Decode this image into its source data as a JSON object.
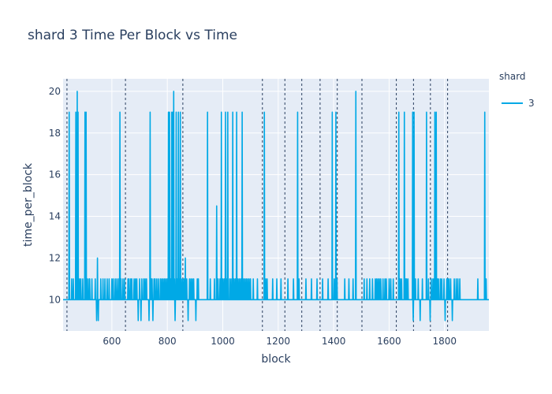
{
  "chart_data": {
    "type": "line",
    "title": "shard 3 Time Per Block vs Time",
    "xlabel": "block",
    "ylabel": "time_per_block",
    "xlim": [
      424,
      1960
    ],
    "ylim": [
      8.5,
      20.6
    ],
    "x_ticks": [
      600,
      800,
      1000,
      1200,
      1400,
      1600,
      1800
    ],
    "x_tick_labels": [
      "600",
      "800",
      "1000",
      "1200",
      "1400",
      "1600",
      "1800"
    ],
    "y_ticks": [
      10,
      12,
      14,
      16,
      18,
      20
    ],
    "y_tick_labels": [
      "10",
      "12",
      "14",
      "16",
      "18",
      "20"
    ],
    "grid": true,
    "legend": {
      "title": "shard",
      "placement": "top-right"
    },
    "vlines": [
      438,
      649,
      856,
      1143,
      1224,
      1285,
      1351,
      1413,
      1502,
      1626,
      1688,
      1749,
      1811
    ],
    "series": [
      {
        "name": "3",
        "color": "#00a9e6",
        "spikes": [
          [
            446,
            19
          ],
          [
            455,
            11
          ],
          [
            461,
            11
          ],
          [
            470,
            19
          ],
          [
            475,
            20
          ],
          [
            478,
            19
          ],
          [
            483,
            11
          ],
          [
            488,
            11
          ],
          [
            495,
            11
          ],
          [
            503,
            19
          ],
          [
            507,
            19
          ],
          [
            512,
            11
          ],
          [
            518,
            11
          ],
          [
            520,
            11
          ],
          [
            528,
            11
          ],
          [
            540,
            11
          ],
          [
            545,
            9
          ],
          [
            548,
            12
          ],
          [
            551,
            9
          ],
          [
            560,
            11
          ],
          [
            568,
            11
          ],
          [
            575,
            11
          ],
          [
            583,
            11
          ],
          [
            590,
            11
          ],
          [
            600,
            11
          ],
          [
            605,
            11
          ],
          [
            612,
            11
          ],
          [
            618,
            11
          ],
          [
            624,
            11
          ],
          [
            629,
            19
          ],
          [
            633,
            11
          ],
          [
            640,
            11
          ],
          [
            646,
            11
          ],
          [
            658,
            11
          ],
          [
            662,
            11
          ],
          [
            668,
            11
          ],
          [
            672,
            11
          ],
          [
            680,
            11
          ],
          [
            685,
            11
          ],
          [
            690,
            11
          ],
          [
            695,
            9
          ],
          [
            700,
            11
          ],
          [
            705,
            9
          ],
          [
            708,
            11
          ],
          [
            715,
            11
          ],
          [
            720,
            11
          ],
          [
            725,
            11
          ],
          [
            734,
            9
          ],
          [
            738,
            19
          ],
          [
            742,
            11
          ],
          [
            745,
            11
          ],
          [
            748,
            9
          ],
          [
            752,
            11
          ],
          [
            756,
            11
          ],
          [
            762,
            11
          ],
          [
            768,
            11
          ],
          [
            775,
            11
          ],
          [
            780,
            11
          ],
          [
            785,
            11
          ],
          [
            790,
            11
          ],
          [
            795,
            11
          ],
          [
            800,
            11
          ],
          [
            804,
            19
          ],
          [
            808,
            19
          ],
          [
            812,
            11
          ],
          [
            816,
            19
          ],
          [
            820,
            19
          ],
          [
            823,
            20
          ],
          [
            826,
            11
          ],
          [
            828,
            9
          ],
          [
            832,
            19
          ],
          [
            836,
            11
          ],
          [
            840,
            19
          ],
          [
            843,
            11
          ],
          [
            847,
            19
          ],
          [
            850,
            11
          ],
          [
            855,
            11
          ],
          [
            860,
            11
          ],
          [
            865,
            12
          ],
          [
            870,
            11
          ],
          [
            875,
            9
          ],
          [
            880,
            11
          ],
          [
            885,
            11
          ],
          [
            890,
            11
          ],
          [
            895,
            11
          ],
          [
            903,
            9
          ],
          [
            908,
            11
          ],
          [
            912,
            11
          ],
          [
            945,
            19
          ],
          [
            955,
            11
          ],
          [
            970,
            11
          ],
          [
            978,
            14.5
          ],
          [
            983,
            11
          ],
          [
            990,
            11
          ],
          [
            995,
            19
          ],
          [
            1000,
            11
          ],
          [
            1005,
            11
          ],
          [
            1010,
            19
          ],
          [
            1015,
            11
          ],
          [
            1018,
            19
          ],
          [
            1025,
            11
          ],
          [
            1030,
            11
          ],
          [
            1036,
            19
          ],
          [
            1040,
            11
          ],
          [
            1045,
            11
          ],
          [
            1050,
            19
          ],
          [
            1055,
            11
          ],
          [
            1060,
            11
          ],
          [
            1065,
            11
          ],
          [
            1070,
            19
          ],
          [
            1075,
            11
          ],
          [
            1080,
            11
          ],
          [
            1085,
            11
          ],
          [
            1090,
            11
          ],
          [
            1095,
            11
          ],
          [
            1100,
            11
          ],
          [
            1110,
            11
          ],
          [
            1125,
            11
          ],
          [
            1150,
            19
          ],
          [
            1155,
            11
          ],
          [
            1160,
            11
          ],
          [
            1180,
            11
          ],
          [
            1195,
            11
          ],
          [
            1210,
            11
          ],
          [
            1235,
            11
          ],
          [
            1255,
            11
          ],
          [
            1270,
            19
          ],
          [
            1275,
            11
          ],
          [
            1300,
            11
          ],
          [
            1320,
            11
          ],
          [
            1340,
            11
          ],
          [
            1360,
            11
          ],
          [
            1380,
            11
          ],
          [
            1395,
            19
          ],
          [
            1402,
            11
          ],
          [
            1408,
            19
          ],
          [
            1412,
            11
          ],
          [
            1440,
            11
          ],
          [
            1455,
            11
          ],
          [
            1470,
            11
          ],
          [
            1480,
            20
          ],
          [
            1510,
            11
          ],
          [
            1520,
            11
          ],
          [
            1530,
            11
          ],
          [
            1540,
            11
          ],
          [
            1550,
            11
          ],
          [
            1555,
            11
          ],
          [
            1560,
            11
          ],
          [
            1565,
            11
          ],
          [
            1570,
            11
          ],
          [
            1578,
            11
          ],
          [
            1585,
            11
          ],
          [
            1590,
            11
          ],
          [
            1600,
            11
          ],
          [
            1606,
            11
          ],
          [
            1615,
            11
          ],
          [
            1635,
            19
          ],
          [
            1640,
            11
          ],
          [
            1645,
            11
          ],
          [
            1655,
            19
          ],
          [
            1660,
            11
          ],
          [
            1663,
            11
          ],
          [
            1668,
            11
          ],
          [
            1685,
            19
          ],
          [
            1687,
            9
          ],
          [
            1690,
            19
          ],
          [
            1695,
            11
          ],
          [
            1705,
            11
          ],
          [
            1712,
            9
          ],
          [
            1720,
            11
          ],
          [
            1735,
            19
          ],
          [
            1742,
            11
          ],
          [
            1748,
            9
          ],
          [
            1752,
            11
          ],
          [
            1758,
            11
          ],
          [
            1762,
            11
          ],
          [
            1765,
            19
          ],
          [
            1770,
            19
          ],
          [
            1774,
            11
          ],
          [
            1778,
            11
          ],
          [
            1785,
            11
          ],
          [
            1790,
            11
          ],
          [
            1798,
            11
          ],
          [
            1802,
            9
          ],
          [
            1808,
            11
          ],
          [
            1812,
            11
          ],
          [
            1816,
            11
          ],
          [
            1822,
            11
          ],
          [
            1828,
            9
          ],
          [
            1835,
            11
          ],
          [
            1842,
            11
          ],
          [
            1848,
            11
          ],
          [
            1855,
            11
          ],
          [
            1920,
            11
          ],
          [
            1945,
            19
          ],
          [
            1950,
            11
          ]
        ]
      }
    ]
  }
}
